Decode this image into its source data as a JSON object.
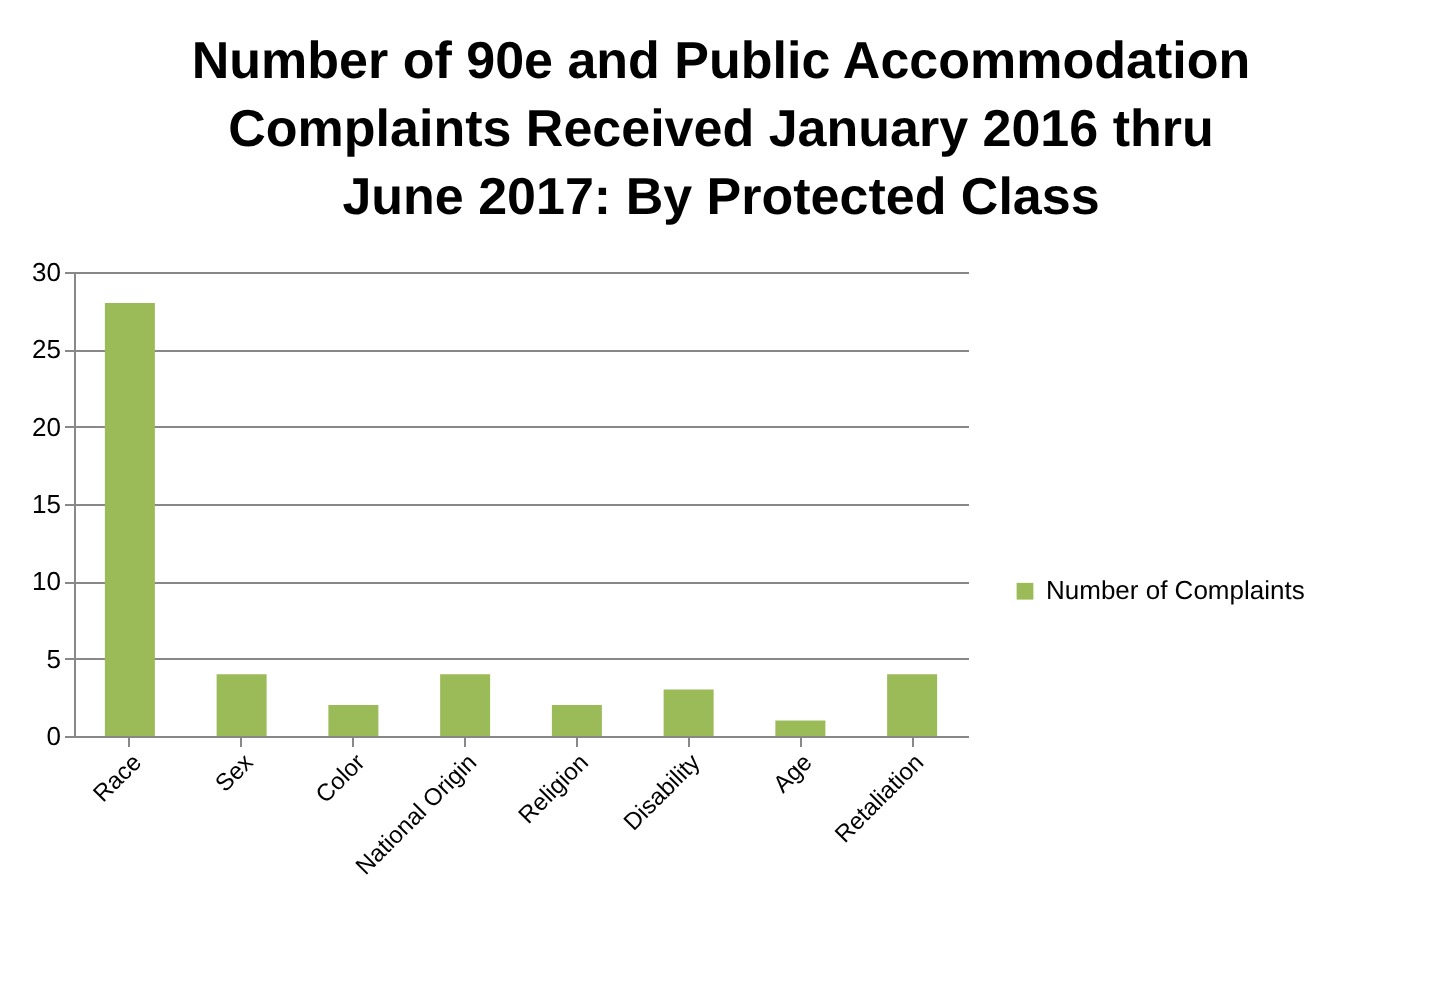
{
  "chart_data": {
    "type": "bar",
    "title": "Number of 90e and Public Accommodation Complaints Received January 2016 thru June 2017: By Protected Class",
    "categories": [
      "Race",
      "Sex",
      "Color",
      "National Origin",
      "Religion",
      "Disability",
      "Age",
      "Retaliation"
    ],
    "series": [
      {
        "name": "Number of Complaints",
        "color": "#9bbb59",
        "values": [
          28,
          4,
          2,
          4,
          2,
          3,
          1,
          4
        ]
      }
    ],
    "ylim": [
      0,
      30
    ],
    "yticks": [
      0,
      5,
      10,
      15,
      20,
      25,
      30
    ],
    "grid": "y",
    "legend": "right"
  }
}
